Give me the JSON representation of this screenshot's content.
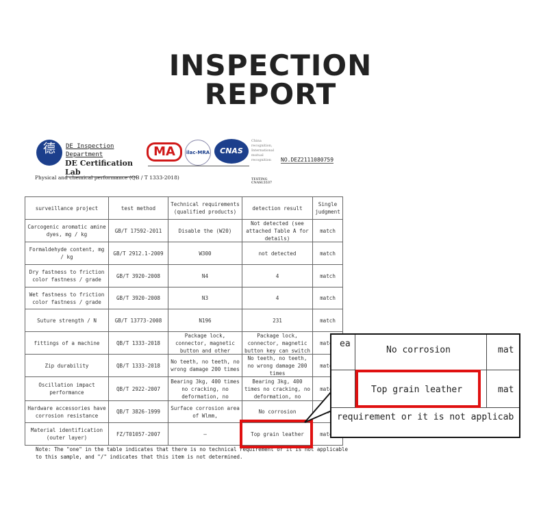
{
  "title": {
    "line1": "INSPECTION",
    "line2": "REPORT"
  },
  "header": {
    "lab_line1": "DE Inspection",
    "lab_line2": "Department",
    "lab_name": "DE Certification Lab",
    "logo_char": "德",
    "ma": "MA",
    "ilac": "ilac-MRA",
    "cnas": "CNAS",
    "cnas_note": "China recognition, International mutual recognition",
    "testing": "TESTING CNASL5537",
    "report_no": "NO.DEZ2111080759",
    "subtitle": "Physical and chemical performance (QB / T 1333-2018)"
  },
  "table": {
    "headers": [
      "surveillance project",
      "test method",
      "Technical requirements (qualified products)",
      "detection result",
      "Single judgment"
    ],
    "rows": [
      [
        "Carcogenic aromatic amine dyes, mg / kg",
        "GB/T 17592-2011",
        "Disable the (W20)",
        "Not detected (see attached Table A for details)",
        "match"
      ],
      [
        "Formaldehyde content, mg / kg",
        "GB/T 2912.1-2009",
        "W300",
        "not detected",
        "match"
      ],
      [
        "Dry fastness to friction color fastness / grade",
        "GB/T 3920-2008",
        "N4",
        "4",
        "match"
      ],
      [
        "Wet fastness to friction color fastness / grade",
        "GB/T 3920-2008",
        "N3",
        "4",
        "match"
      ],
      [
        "Suture strength / N",
        "GB/T 13773-2008",
        "N196",
        "231",
        "match"
      ],
      [
        "fittings of a machine",
        "QB/T 1333-2018",
        "Package lock, connector, magnetic button and other normal",
        "Package lock, connector, magnetic button key can switch",
        "match"
      ],
      [
        "Zip durability",
        "QB/T 1333-2018",
        "No teeth, no teeth, no wrong damage 200 times",
        "No teeth, no teeth, no wrong damage 200 times",
        "match"
      ],
      [
        "Oscillation impact performance",
        "QB/T 2922-2007",
        "Bearing 3kg, 400 times no cracking, no deformation, no",
        "Bearing 3kg, 400 times no cracking, no deformation, no",
        "match"
      ],
      [
        "Hardware accessories have corrosion resistance",
        "QB/T 3826-1999",
        "Surface corrosion area of Wlmm,",
        "No corrosion",
        "match"
      ],
      [
        "Material identification (outer layer)",
        "FZ/T01057-2007",
        "—",
        "Top grain leather",
        "match"
      ]
    ],
    "note": "Note: The \"one\" in the table indicates that there is no technical requirement or it is not applicable to this sample, and \"/\" indicates that this item is not determined."
  },
  "callout": {
    "top_left": "ea",
    "corrosion": "No corrosion",
    "match1": "mat",
    "leather": "Top grain leather",
    "match2": "mat",
    "note_fragment": "requirement or it is not applicab"
  },
  "colors": {
    "highlight": "#e01010",
    "cnas_blue": "#1c3f8c",
    "ma_red": "#d01818"
  }
}
